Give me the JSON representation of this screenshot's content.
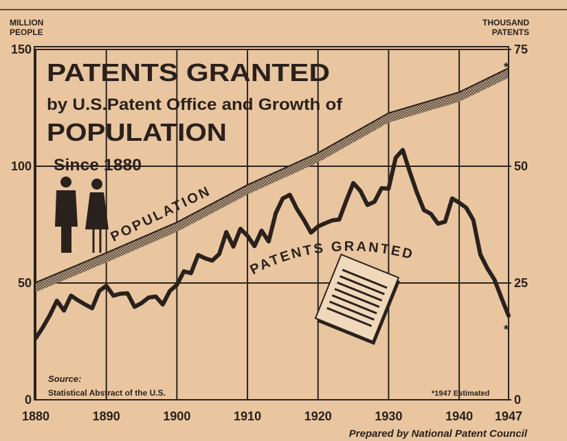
{
  "chart_data": {
    "type": "line",
    "title": "PATENTS GRANTED",
    "subtitle": "by U.S.Patent Office and Growth of",
    "title_line3": "POPULATION",
    "title_line4": "Since 1880",
    "y_axis_label": [
      "MILLION",
      "PEOPLE"
    ],
    "y2_axis_label": [
      "THOUSAND",
      "PATENTS"
    ],
    "xlim": [
      1880,
      1947
    ],
    "xticks": [
      1880,
      1890,
      1900,
      1910,
      1920,
      1930,
      1940,
      1947
    ],
    "ylim": [
      0,
      150
    ],
    "yticks": [
      0,
      50,
      100,
      150
    ],
    "y2lim": [
      0,
      75
    ],
    "y2ticks": [
      0,
      25,
      50,
      75
    ],
    "grid": true,
    "series": [
      {
        "name": "POPULATION",
        "color": "#2a211c",
        "x": [
          1880,
          1890,
          1900,
          1910,
          1920,
          1930,
          1940,
          1947
        ],
        "values": [
          50.2,
          62.9,
          76,
          92,
          105.7,
          122.8,
          131.7,
          142
        ]
      },
      {
        "name": "PATENTS GRANTED",
        "color": "#2a211c",
        "axis": "y2",
        "x": [
          1880,
          1881,
          1882,
          1883,
          1884,
          1885,
          1886,
          1887,
          1888,
          1889,
          1890,
          1891,
          1892,
          1893,
          1894,
          1895,
          1896,
          1897,
          1898,
          1899,
          1900,
          1901,
          1902,
          1903,
          1904,
          1905,
          1906,
          1907,
          1908,
          1909,
          1910,
          1911,
          1912,
          1913,
          1914,
          1915,
          1916,
          1917,
          1918,
          1919,
          1920,
          1921,
          1922,
          1923,
          1924,
          1925,
          1926,
          1927,
          1928,
          1929,
          1930,
          1931,
          1932,
          1933,
          1934,
          1935,
          1936,
          1937,
          1938,
          1939,
          1940,
          1941,
          1942,
          1943,
          1944,
          1945,
          1946,
          1947
        ],
        "values": [
          13.2,
          15.5,
          18.1,
          21.2,
          19.1,
          22.3,
          21.3,
          20.4,
          19.6,
          23.3,
          24.4,
          22.3,
          22.7,
          22.8,
          19.9,
          20.7,
          21.9,
          22.1,
          20.4,
          23.3,
          24.6,
          27.5,
          27.1,
          31.0,
          30.3,
          29.8,
          31.2,
          35.9,
          32.8,
          36.6,
          35.1,
          32.9,
          36.2,
          33.9,
          39.9,
          43.1,
          43.9,
          40.9,
          38.5,
          35.8,
          37.1,
          37.8,
          38.4,
          38.6,
          42.6,
          46.4,
          44.7,
          41.7,
          42.4,
          45.3,
          45.2,
          51.8,
          53.5,
          48.8,
          44.4,
          40.6,
          39.8,
          37.7,
          38.1,
          43.1,
          42.2,
          41.1,
          38.5,
          31.1,
          28.1,
          25.7,
          21.8,
          18
        ]
      }
    ],
    "annotations": [
      "*",
      "*",
      "Source:",
      "Statistical Abstract of the U.S.",
      "*1947 Estimated",
      "Prepared by National Patent Council"
    ]
  }
}
